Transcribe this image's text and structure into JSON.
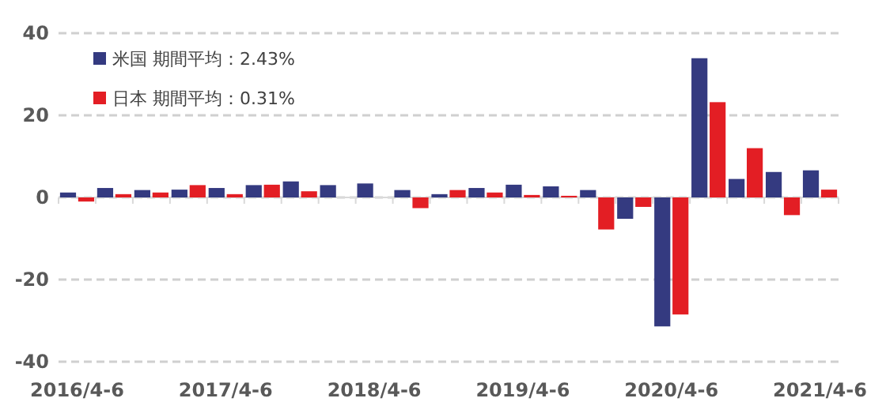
{
  "chart_data": {
    "type": "bar",
    "categories": [
      "2016/4-6",
      null,
      null,
      null,
      "2017/4-6",
      null,
      null,
      null,
      "2018/4-6",
      null,
      null,
      null,
      "2019/4-6",
      null,
      null,
      null,
      "2020/4-6",
      null,
      null,
      null,
      "2021/4-6"
    ],
    "series": [
      {
        "name": "米国 期間平均：2.43%",
        "color": "#343a80",
        "values": [
          1.2,
          2.3,
          1.8,
          1.9,
          2.3,
          3.0,
          3.9,
          3.0,
          3.4,
          1.8,
          0.8,
          2.3,
          3.1,
          2.7,
          1.8,
          -5.2,
          -31.4,
          33.9,
          4.5,
          6.2,
          6.6
        ]
      },
      {
        "name": "日本 期間平均：0.31%",
        "color": "#e31e24",
        "values": [
          -1.0,
          0.8,
          1.2,
          3.0,
          0.8,
          3.1,
          1.5,
          0,
          0,
          -2.6,
          1.8,
          1.2,
          0.6,
          0.4,
          -7.8,
          -2.3,
          -28.5,
          23.2,
          12.0,
          -4.3,
          1.9
        ]
      }
    ],
    "ylim": [
      -40,
      40
    ],
    "yticks": [
      -40,
      -20,
      0,
      20,
      40
    ],
    "grid": "y",
    "legend": "top left"
  }
}
